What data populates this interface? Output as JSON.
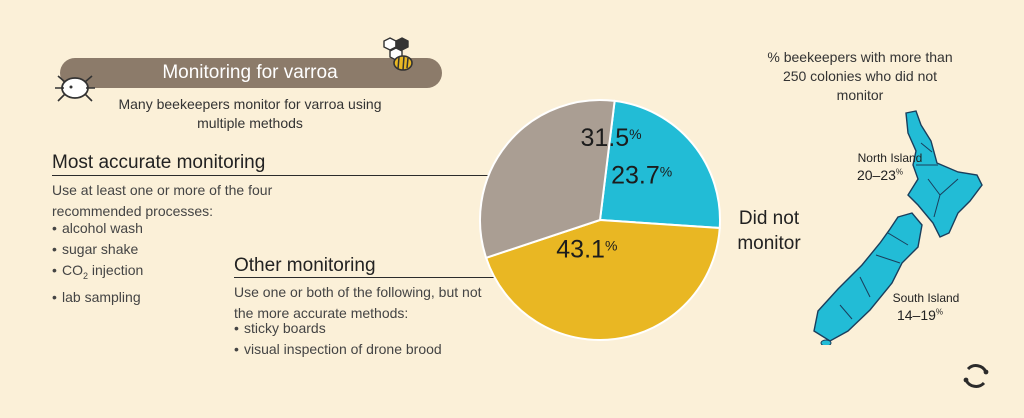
{
  "header": {
    "title": "Monitoring for varroa",
    "subtitle": "Many beekeepers monitor for varroa using multiple methods"
  },
  "most_accurate": {
    "heading": "Most accurate monitoring",
    "description": "Use at least one or more of the four recommended processes:",
    "items": [
      "alcohol wash",
      "sugar shake",
      "CO",
      "2",
      " injection",
      "lab sampling"
    ]
  },
  "other": {
    "heading": "Other monitoring",
    "description": "Use one or both of the following, but not the more accurate methods:",
    "items": [
      "sticky boards",
      "visual inspection of drone brood"
    ]
  },
  "did_not": {
    "line1": "Did not",
    "line2": "monitor"
  },
  "nz": {
    "title": "% beekeepers with more than 250 colonies who did not monitor",
    "north": {
      "name": "North Island",
      "range": "20–23",
      "unit": "%"
    },
    "south": {
      "name": "South Island",
      "range": "14–19",
      "unit": "%"
    }
  },
  "colors": {
    "did_not": "#22bcd6",
    "most_accurate": "#aa9e93",
    "other": "#e9b723",
    "banner": "#8c7b6a",
    "background": "#fbf0d8",
    "map": "#22bcd6"
  },
  "chart_data": {
    "type": "pie",
    "slices": [
      {
        "label": "Did not monitor",
        "value": 23.7,
        "display": "23.7",
        "unit": "%",
        "color": "#22bcd6"
      },
      {
        "label": "Other monitoring",
        "value": 43.1,
        "display": "43.1",
        "unit": "%",
        "color": "#e9b723"
      },
      {
        "label": "Most accurate monitoring",
        "value": 31.5,
        "display": "31.5",
        "unit": "%",
        "color": "#aa9e93"
      }
    ]
  }
}
